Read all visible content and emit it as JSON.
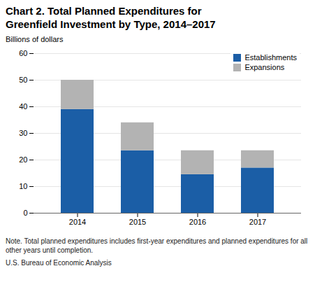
{
  "chart_data": {
    "type": "bar",
    "title": "Chart 2. Total Planned Expenditures for\nGreenfield Investment by Type, 2014–2017",
    "ylabel": "Billions of dollars",
    "categories": [
      "2014",
      "2015",
      "2016",
      "2017"
    ],
    "series": [
      {
        "name": "Establishments",
        "color": "#1b5ea6",
        "values": [
          39,
          23.5,
          14.5,
          17
        ]
      },
      {
        "name": "Expansions",
        "color": "#b3b3b3",
        "values": [
          11,
          10.5,
          9,
          6.5
        ]
      }
    ],
    "stacked": true,
    "ylim": [
      0,
      60
    ],
    "yticks": [
      0,
      10,
      20,
      30,
      40,
      50,
      60
    ],
    "grid": true,
    "legend": "upper right",
    "note": "Note. Total planned expenditures includes first-year expenditures and planned expenditures for all\nother years until completion.",
    "source": "U.S. Bureau of Economic Analysis"
  }
}
